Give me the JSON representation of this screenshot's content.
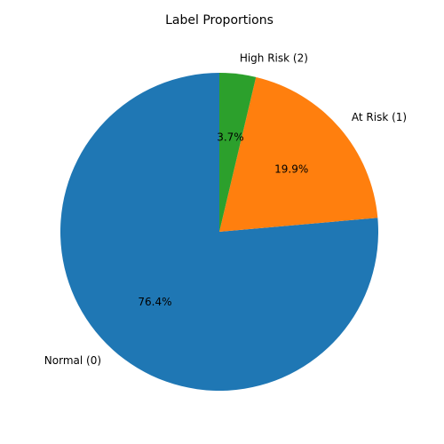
{
  "chart_data": {
    "type": "pie",
    "title": "Label Proportions",
    "slices": [
      {
        "label": "Normal (0)",
        "value": 76.4,
        "pct_label": "76.4%",
        "color": "#1f77b4"
      },
      {
        "label": "At Risk (1)",
        "value": 19.9,
        "pct_label": "19.9%",
        "color": "#ff7f0e"
      },
      {
        "label": "High Risk (2)",
        "value": 3.7,
        "pct_label": "3.7%",
        "color": "#2ca02c"
      }
    ],
    "start_angle_deg": 90,
    "direction": "counterclockwise"
  }
}
